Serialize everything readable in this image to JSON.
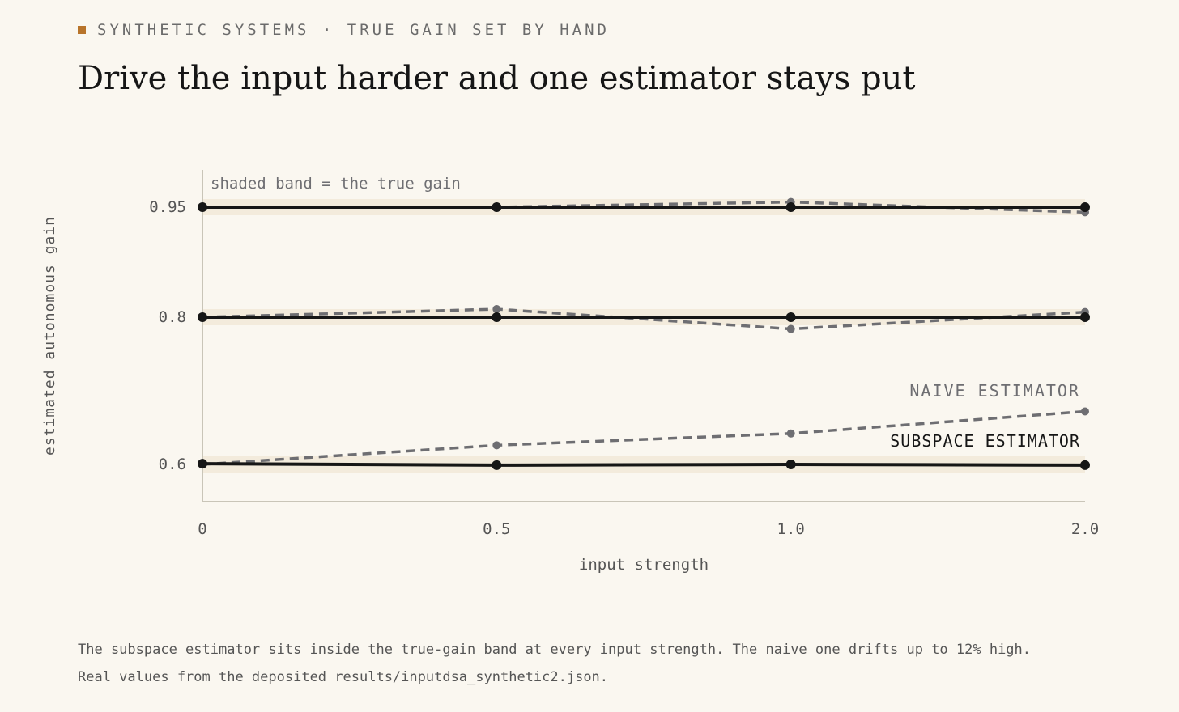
{
  "header": {
    "eyebrow": "SYNTHETIC SYSTEMS · TRUE GAIN SET BY HAND",
    "title": "Drive the input harder and one estimator stays put"
  },
  "colors": {
    "accent": "#b8742a",
    "subspace": "#161616",
    "naive": "#6e6e72",
    "band": "#f3ebdc",
    "axis": "#c9c5b8",
    "background": "#faf7f0"
  },
  "chart_data": {
    "type": "line",
    "xlabel": "input strength",
    "ylabel": "estimated autonomous gain",
    "x": [
      0,
      0.5,
      1.0,
      2.0
    ],
    "x_tick_labels": [
      "0",
      "0.5",
      "1.0",
      "2.0"
    ],
    "y_ticks": [
      0.6,
      0.8,
      0.95
    ],
    "y_tick_labels": [
      "0.6",
      "0.8",
      "0.95"
    ],
    "true_gains": [
      0.95,
      0.8,
      0.6
    ],
    "band_note": "shaded band = the true gain",
    "series_labels": {
      "naive": "NAIVE ESTIMATOR",
      "subspace": "SUBSPACE ESTIMATOR"
    },
    "systems": [
      {
        "true_gain": 0.95,
        "naive": [
          0.95,
          0.95,
          0.957,
          0.943
        ],
        "subspace": [
          0.95,
          0.95,
          0.95,
          0.95
        ]
      },
      {
        "true_gain": 0.8,
        "naive": [
          0.8,
          0.811,
          0.784,
          0.807
        ],
        "subspace": [
          0.8,
          0.8,
          0.8,
          0.8
        ]
      },
      {
        "true_gain": 0.6,
        "naive": [
          0.6,
          0.626,
          0.642,
          0.672
        ],
        "subspace": [
          0.601,
          0.599,
          0.6,
          0.599
        ]
      }
    ]
  },
  "caption": {
    "line1": "The subspace estimator sits inside the true-gain band at every input strength. The naive one drifts up to 12% high.",
    "line2": "Real values from the deposited results/inputdsa_synthetic2.json."
  }
}
